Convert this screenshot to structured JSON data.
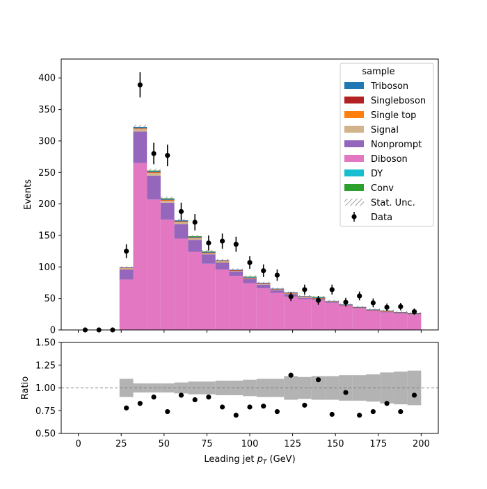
{
  "chart_data": [
    {
      "type": "bar",
      "stacked": true,
      "xlabel": "Leading jet  pT (GeV)",
      "ylabel": "Events",
      "xlim": [
        -10,
        210
      ],
      "ylim": [
        0,
        430
      ],
      "yticks": [
        0,
        50,
        100,
        150,
        200,
        250,
        300,
        350,
        400
      ],
      "bin_edges": [
        24,
        32,
        40,
        48,
        56,
        64,
        72,
        80,
        88,
        96,
        104,
        112,
        120,
        128,
        136,
        144,
        152,
        160,
        168,
        176,
        184,
        192,
        200
      ],
      "series": [
        {
          "name": "Diboson",
          "color": "#e377c2",
          "values": [
            80,
            265,
            207,
            175,
            145,
            124,
            105,
            96,
            86,
            74,
            66,
            59,
            53,
            49,
            47,
            43,
            38,
            34,
            30,
            28,
            26,
            24
          ]
        },
        {
          "name": "Nonprompt",
          "color": "#9467bd",
          "values": [
            16,
            50,
            38,
            27,
            23,
            19,
            15,
            11,
            7,
            7,
            6,
            4,
            4,
            2,
            2,
            1,
            1,
            1,
            1,
            1,
            1,
            1
          ]
        },
        {
          "name": "Signal",
          "color": "#d2b48c",
          "values": [
            2,
            4,
            4,
            3,
            3,
            3,
            2,
            2,
            1,
            1,
            1,
            1,
            1,
            1,
            1,
            1,
            0.5,
            0.5,
            0.5,
            0.5,
            0.5,
            0.5
          ]
        },
        {
          "name": "Single top",
          "color": "#ff7f0e",
          "values": [
            0.5,
            1,
            1,
            1,
            1,
            0.5,
            0.5,
            0.5,
            0.5,
            0.5,
            0.5,
            0.5,
            0.5,
            0.5,
            0.5,
            0.3,
            0.3,
            0.3,
            0.3,
            0.3,
            0.3,
            0.3
          ]
        },
        {
          "name": "Singleboson",
          "color": "#b22222",
          "values": [
            0.3,
            0.5,
            0.5,
            0.5,
            0.5,
            0.3,
            0.3,
            0.3,
            0.3,
            0.3,
            0.3,
            0.3,
            0.3,
            0.3,
            0.3,
            0.2,
            0.2,
            0.2,
            0.2,
            0.2,
            0.2,
            0.2
          ]
        },
        {
          "name": "Triboson",
          "color": "#1f77b4",
          "values": [
            0.5,
            1.5,
            1.5,
            1.5,
            1.5,
            1,
            1,
            0.8,
            0.8,
            0.8,
            0.8,
            0.8,
            0.8,
            0.8,
            0.6,
            0.6,
            0.6,
            0.6,
            0.6,
            0.6,
            0.6,
            0.6
          ]
        },
        {
          "name": "DY",
          "color": "#17becf",
          "values": [
            0,
            0,
            0,
            0,
            0,
            0,
            0,
            0,
            0,
            0,
            0,
            0,
            0,
            0,
            0,
            0,
            0,
            0,
            0,
            0,
            0,
            0
          ]
        },
        {
          "name": "Conv",
          "color": "#2ca02c",
          "values": [
            0,
            0,
            1,
            1,
            0,
            1,
            1,
            0,
            0,
            1,
            0,
            0,
            0,
            0,
            1,
            0,
            0,
            0,
            0,
            0,
            0,
            0
          ]
        }
      ],
      "stat_unc": {
        "name": "Stat. Unc.",
        "values": [
          1.5,
          3.5,
          3,
          2.5,
          2.5,
          2,
          2,
          2,
          2,
          2,
          2,
          1.5,
          1.5,
          1.5,
          1.5,
          1.5,
          1.5,
          1.5,
          1.5,
          1.5,
          1.5,
          1.5
        ]
      },
      "data_points": {
        "name": "Data",
        "x": [
          4,
          12,
          20,
          28,
          36,
          44,
          52,
          60,
          68,
          76,
          84,
          92,
          100,
          108,
          116,
          124,
          132,
          140,
          148,
          156,
          164,
          172,
          180,
          188,
          196
        ],
        "y": [
          0,
          0,
          0,
          125,
          389,
          280,
          277,
          188,
          171,
          138,
          141,
          136,
          107,
          94,
          87,
          53,
          64,
          47,
          64,
          44,
          54,
          43,
          36,
          37,
          29
        ],
        "yerr": [
          0,
          0,
          0,
          11,
          20,
          17,
          17,
          14,
          13,
          12,
          12,
          12,
          10,
          10,
          9,
          7,
          8,
          7,
          8,
          7,
          7,
          7,
          6,
          6,
          5
        ]
      },
      "legend": {
        "title": "sample",
        "placement": "top-right",
        "entries": [
          "Triboson",
          "Singleboson",
          "Single top",
          "Signal",
          "Nonprompt",
          "Diboson",
          "DY",
          "Conv",
          "Stat. Unc.",
          "Data"
        ]
      }
    },
    {
      "type": "scatter",
      "xlabel": "Leading jet  pT (GeV)",
      "ylabel": "Ratio",
      "xlim": [
        -10,
        210
      ],
      "ylim": [
        0.5,
        1.5
      ],
      "yticks": [
        "0.50",
        "0.75",
        "1.00",
        "1.25",
        "1.50"
      ],
      "xticks": [
        "0",
        "25",
        "50",
        "75",
        "100",
        "125",
        "150",
        "175",
        "200"
      ],
      "reference_line": 1.0,
      "unc_band": {
        "bin_edges": [
          24,
          32,
          40,
          48,
          56,
          64,
          72,
          80,
          88,
          96,
          104,
          112,
          120,
          128,
          136,
          144,
          152,
          160,
          168,
          176,
          184,
          192,
          200
        ],
        "low": [
          0.9,
          0.95,
          0.95,
          0.95,
          0.94,
          0.93,
          0.93,
          0.92,
          0.92,
          0.91,
          0.9,
          0.9,
          0.87,
          0.88,
          0.87,
          0.87,
          0.86,
          0.86,
          0.85,
          0.83,
          0.82,
          0.81
        ],
        "high": [
          1.1,
          1.05,
          1.05,
          1.05,
          1.06,
          1.07,
          1.07,
          1.08,
          1.08,
          1.09,
          1.1,
          1.1,
          1.13,
          1.12,
          1.13,
          1.13,
          1.14,
          1.14,
          1.15,
          1.17,
          1.18,
          1.19
        ]
      },
      "points": {
        "x": [
          28,
          36,
          44,
          52,
          60,
          68,
          76,
          84,
          92,
          100,
          108,
          116,
          124,
          132,
          140,
          148,
          156,
          164,
          172,
          180,
          188,
          196
        ],
        "y": [
          0.78,
          0.83,
          0.9,
          0.74,
          0.92,
          0.87,
          0.9,
          0.79,
          0.7,
          0.79,
          0.8,
          0.74,
          1.14,
          0.81,
          1.09,
          0.71,
          0.95,
          0.7,
          0.74,
          0.83,
          0.74,
          0.92
        ]
      }
    }
  ]
}
